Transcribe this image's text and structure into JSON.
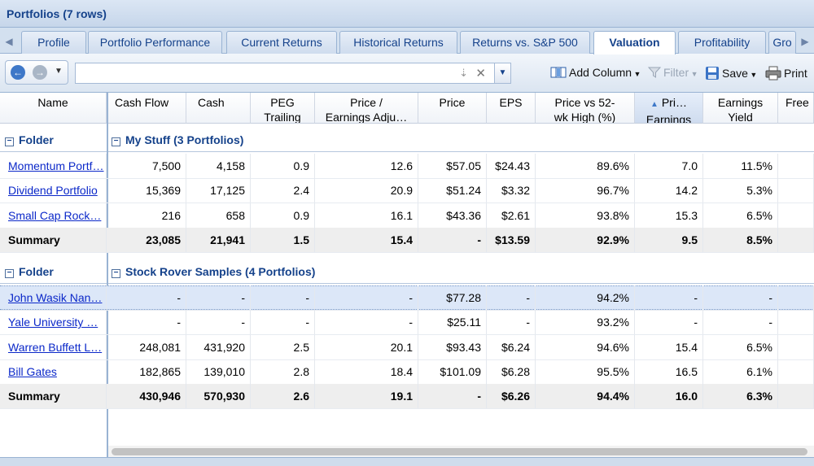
{
  "window": {
    "title": "Portfolios (7 rows)"
  },
  "tabs": [
    {
      "label": "Profile"
    },
    {
      "label": "Portfolio Performance"
    },
    {
      "label": "Current Returns"
    },
    {
      "label": "Historical Returns"
    },
    {
      "label": "Returns vs. S&P 500"
    },
    {
      "label": "Valuation"
    },
    {
      "label": "Profitability"
    },
    {
      "label": "Gro"
    }
  ],
  "active_tab": "Valuation",
  "toolbar": {
    "search_value": "",
    "add_column_label": "Add Column",
    "filter_label": "Filter",
    "save_label": "Save",
    "print_label": "Print"
  },
  "columns": {
    "name": "Name",
    "cash_flow": "Cash Flow",
    "cash": "Cash",
    "peg_1": "PEG",
    "peg_2": "Trailing",
    "pe_1": "Price /",
    "pe_2": "Earnings Adju…",
    "price": "Price",
    "eps": "EPS",
    "p52_1": "Price vs 52-",
    "p52_2": "wk High (%)",
    "pri_1": "Pri…",
    "pri_2": "Earnings",
    "ey_1": "Earnings",
    "ey_2": "Yield",
    "free": "Free"
  },
  "groups": [
    {
      "folder_label": "Folder",
      "title": "My Stuff (3 Portfolios)",
      "rows": [
        {
          "name": "Momentum Portf…",
          "cash_flow": "7,500",
          "cash": "4,158",
          "peg": "0.9",
          "pe": "12.6",
          "price": "$57.05",
          "eps": "$24.43",
          "p52": "89.6%",
          "pri": "7.0",
          "ey": "11.5%"
        },
        {
          "name": "Dividend Portfolio",
          "cash_flow": "15,369",
          "cash": "17,125",
          "peg": "2.4",
          "pe": "20.9",
          "price": "$51.24",
          "eps": "$3.32",
          "p52": "96.7%",
          "pri": "14.2",
          "ey": "5.3%"
        },
        {
          "name": "Small Cap Rock…",
          "cash_flow": "216",
          "cash": "658",
          "peg": "0.9",
          "pe": "16.1",
          "price": "$43.36",
          "eps": "$2.61",
          "p52": "93.8%",
          "pri": "15.3",
          "ey": "6.5%"
        }
      ],
      "summary": {
        "name": "Summary",
        "cash_flow": "23,085",
        "cash": "21,941",
        "peg": "1.5",
        "pe": "15.4",
        "price": "-",
        "eps": "$13.59",
        "p52": "92.9%",
        "pri": "9.5",
        "ey": "8.5%"
      }
    },
    {
      "folder_label": "Folder",
      "title": "Stock Rover Samples (4 Portfolios)",
      "rows": [
        {
          "name": "John Wasik Nan…",
          "cash_flow": "-",
          "cash": "-",
          "peg": "-",
          "pe": "-",
          "price": "$77.28",
          "eps": "-",
          "p52": "94.2%",
          "pri": "-",
          "ey": "-"
        },
        {
          "name": "Yale University …",
          "cash_flow": "-",
          "cash": "-",
          "peg": "-",
          "pe": "-",
          "price": "$25.11",
          "eps": "-",
          "p52": "93.2%",
          "pri": "-",
          "ey": "-"
        },
        {
          "name": "Warren Buffett L…",
          "cash_flow": "248,081",
          "cash": "431,920",
          "peg": "2.5",
          "pe": "20.1",
          "price": "$93.43",
          "eps": "$6.24",
          "p52": "94.6%",
          "pri": "15.4",
          "ey": "6.5%"
        },
        {
          "name": "Bill Gates",
          "cash_flow": "182,865",
          "cash": "139,010",
          "peg": "2.8",
          "pe": "18.4",
          "price": "$101.09",
          "eps": "$6.28",
          "p52": "95.5%",
          "pri": "16.5",
          "ey": "6.1%"
        }
      ],
      "summary": {
        "name": "Summary",
        "cash_flow": "430,946",
        "cash": "570,930",
        "peg": "2.6",
        "pe": "19.1",
        "price": "-",
        "eps": "$6.26",
        "p52": "94.4%",
        "pri": "16.0",
        "ey": "6.3%"
      }
    }
  ]
}
